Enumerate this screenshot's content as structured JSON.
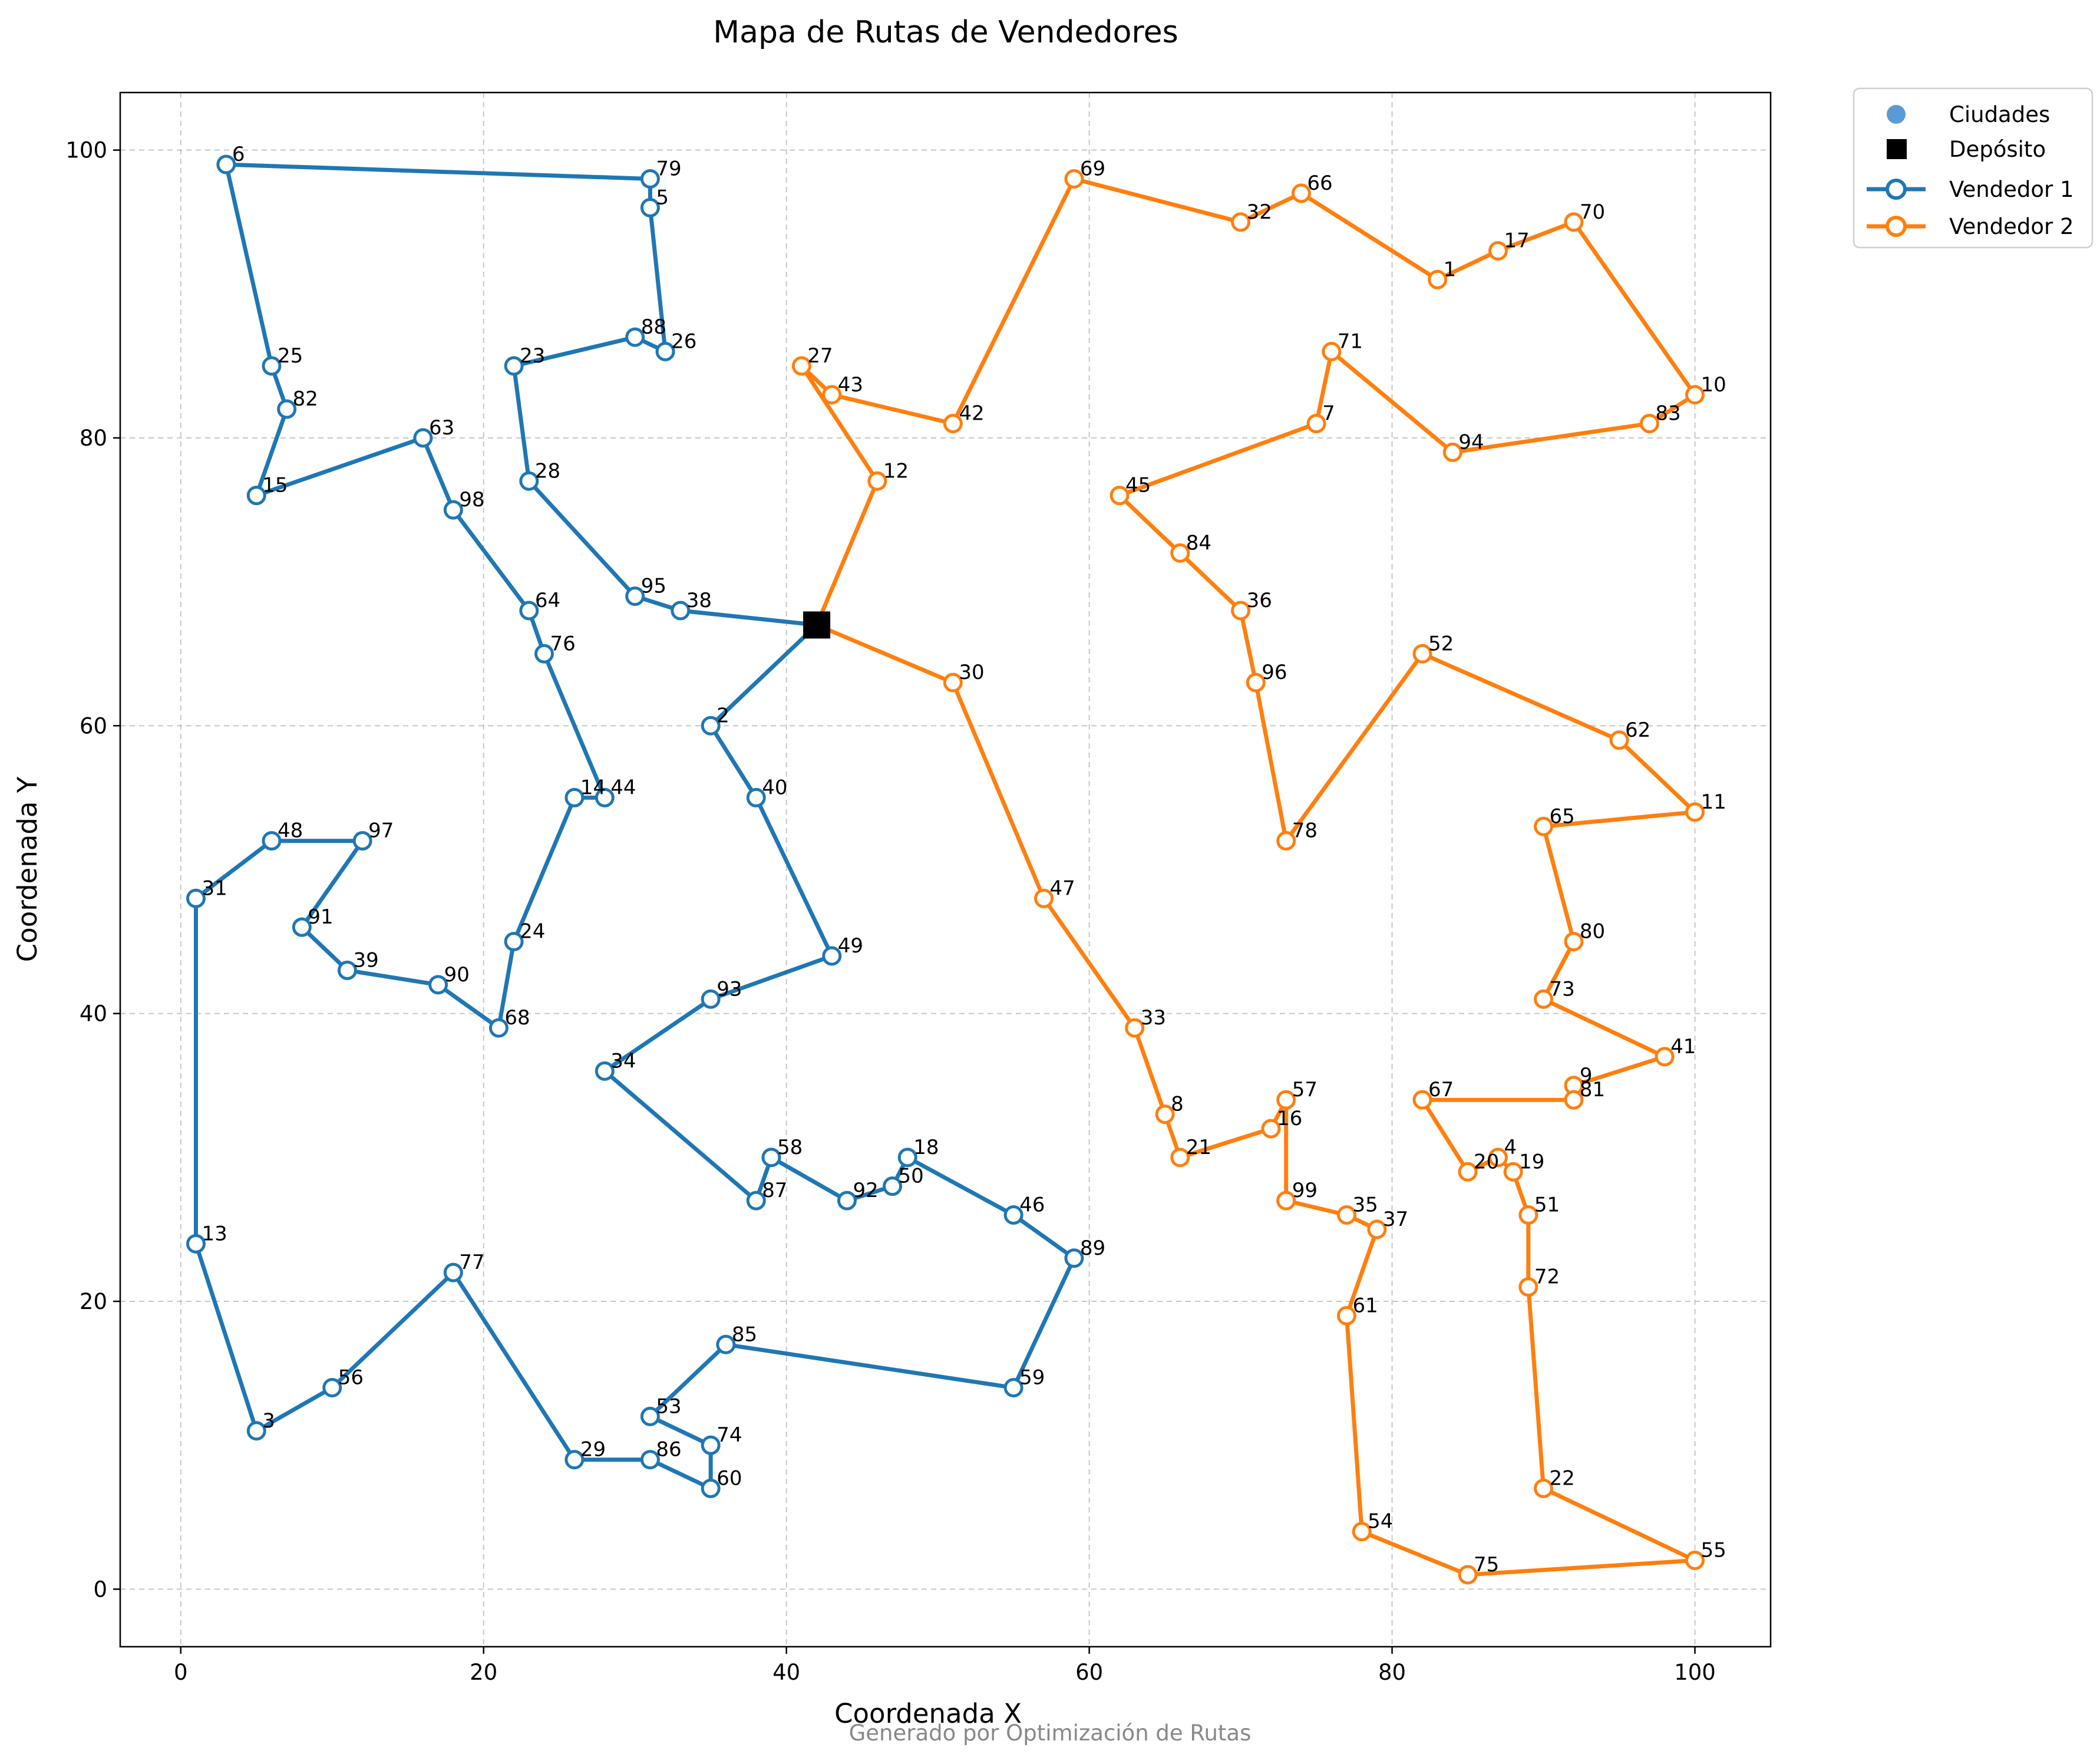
{
  "chart_data": {
    "type": "scatter",
    "title": "Mapa de Rutas de Vendedores",
    "xlabel": "Coordenada X",
    "ylabel": "Coordenada Y",
    "footer": "Generado por Optimización de Rutas",
    "xlim": [
      -4,
      105
    ],
    "ylim": [
      -4,
      104
    ],
    "xticks": [
      0,
      20,
      40,
      60,
      80,
      100
    ],
    "yticks": [
      0,
      20,
      40,
      60,
      80,
      100
    ],
    "grid": true,
    "legend_position": "outside-top-right",
    "legend": {
      "cities": "Ciudades",
      "depot": "Depósito",
      "seller1": "Vendedor 1",
      "seller2": "Vendedor 2"
    },
    "colors": {
      "seller1": "#1f77b4",
      "seller2": "#ff7f0e",
      "cities": "#5b9bd5",
      "depot": "#000000",
      "grid": "#b0b0b0"
    },
    "depot": {
      "x": 42,
      "y": 67
    },
    "cities": [
      {
        "id": "1",
        "x": 83,
        "y": 91
      },
      {
        "id": "2",
        "x": 35,
        "y": 60
      },
      {
        "id": "3",
        "x": 5,
        "y": 11
      },
      {
        "id": "4",
        "x": 87,
        "y": 30
      },
      {
        "id": "5",
        "x": 31,
        "y": 96
      },
      {
        "id": "6",
        "x": 3,
        "y": 99
      },
      {
        "id": "7",
        "x": 75,
        "y": 81
      },
      {
        "id": "8",
        "x": 65,
        "y": 33
      },
      {
        "id": "9",
        "x": 92,
        "y": 35
      },
      {
        "id": "10",
        "x": 100,
        "y": 83
      },
      {
        "id": "11",
        "x": 100,
        "y": 54
      },
      {
        "id": "12",
        "x": 46,
        "y": 77
      },
      {
        "id": "13",
        "x": 1,
        "y": 24
      },
      {
        "id": "14",
        "x": 26,
        "y": 55
      },
      {
        "id": "15",
        "x": 5,
        "y": 76
      },
      {
        "id": "16",
        "x": 72,
        "y": 32
      },
      {
        "id": "17",
        "x": 87,
        "y": 93
      },
      {
        "id": "18",
        "x": 48,
        "y": 30
      },
      {
        "id": "19",
        "x": 88,
        "y": 29
      },
      {
        "id": "20",
        "x": 85,
        "y": 29
      },
      {
        "id": "21",
        "x": 66,
        "y": 30
      },
      {
        "id": "22",
        "x": 90,
        "y": 7
      },
      {
        "id": "23",
        "x": 22,
        "y": 85
      },
      {
        "id": "24",
        "x": 22,
        "y": 45
      },
      {
        "id": "25",
        "x": 6,
        "y": 85
      },
      {
        "id": "26",
        "x": 32,
        "y": 86
      },
      {
        "id": "27",
        "x": 41,
        "y": 85
      },
      {
        "id": "28",
        "x": 23,
        "y": 77
      },
      {
        "id": "29",
        "x": 26,
        "y": 9
      },
      {
        "id": "30",
        "x": 51,
        "y": 63
      },
      {
        "id": "31",
        "x": 1,
        "y": 48
      },
      {
        "id": "32",
        "x": 70,
        "y": 95
      },
      {
        "id": "33",
        "x": 63,
        "y": 39
      },
      {
        "id": "34",
        "x": 28,
        "y": 36
      },
      {
        "id": "35",
        "x": 77,
        "y": 26
      },
      {
        "id": "36",
        "x": 70,
        "y": 68
      },
      {
        "id": "37",
        "x": 79,
        "y": 25
      },
      {
        "id": "38",
        "x": 33,
        "y": 68
      },
      {
        "id": "39",
        "x": 11,
        "y": 43
      },
      {
        "id": "40",
        "x": 38,
        "y": 55
      },
      {
        "id": "41",
        "x": 98,
        "y": 37
      },
      {
        "id": "42",
        "x": 51,
        "y": 81
      },
      {
        "id": "43",
        "x": 43,
        "y": 83
      },
      {
        "id": "44",
        "x": 28,
        "y": 55
      },
      {
        "id": "45",
        "x": 62,
        "y": 76
      },
      {
        "id": "46",
        "x": 55,
        "y": 26
      },
      {
        "id": "47",
        "x": 57,
        "y": 48
      },
      {
        "id": "48",
        "x": 6,
        "y": 52
      },
      {
        "id": "49",
        "x": 43,
        "y": 44
      },
      {
        "id": "50",
        "x": 47,
        "y": 28
      },
      {
        "id": "51",
        "x": 89,
        "y": 26
      },
      {
        "id": "52",
        "x": 82,
        "y": 65
      },
      {
        "id": "53",
        "x": 31,
        "y": 12
      },
      {
        "id": "54",
        "x": 78,
        "y": 4
      },
      {
        "id": "55",
        "x": 100,
        "y": 2
      },
      {
        "id": "56",
        "x": 10,
        "y": 14
      },
      {
        "id": "57",
        "x": 73,
        "y": 34
      },
      {
        "id": "58",
        "x": 39,
        "y": 30
      },
      {
        "id": "59",
        "x": 55,
        "y": 14
      },
      {
        "id": "60",
        "x": 35,
        "y": 7
      },
      {
        "id": "61",
        "x": 77,
        "y": 19
      },
      {
        "id": "62",
        "x": 95,
        "y": 59
      },
      {
        "id": "63",
        "x": 16,
        "y": 80
      },
      {
        "id": "64",
        "x": 23,
        "y": 68
      },
      {
        "id": "65",
        "x": 90,
        "y": 53
      },
      {
        "id": "66",
        "x": 74,
        "y": 97
      },
      {
        "id": "67",
        "x": 82,
        "y": 34
      },
      {
        "id": "68",
        "x": 21,
        "y": 39
      },
      {
        "id": "69",
        "x": 59,
        "y": 98
      },
      {
        "id": "70",
        "x": 92,
        "y": 95
      },
      {
        "id": "71",
        "x": 76,
        "y": 86
      },
      {
        "id": "72",
        "x": 89,
        "y": 21
      },
      {
        "id": "73",
        "x": 90,
        "y": 41
      },
      {
        "id": "74",
        "x": 35,
        "y": 10
      },
      {
        "id": "75",
        "x": 85,
        "y": 1
      },
      {
        "id": "76",
        "x": 24,
        "y": 65
      },
      {
        "id": "77",
        "x": 18,
        "y": 22
      },
      {
        "id": "78",
        "x": 73,
        "y": 52
      },
      {
        "id": "79",
        "x": 31,
        "y": 98
      },
      {
        "id": "80",
        "x": 92,
        "y": 45
      },
      {
        "id": "81",
        "x": 92,
        "y": 34
      },
      {
        "id": "82",
        "x": 7,
        "y": 82
      },
      {
        "id": "83",
        "x": 97,
        "y": 81
      },
      {
        "id": "84",
        "x": 66,
        "y": 72
      },
      {
        "id": "85",
        "x": 36,
        "y": 17
      },
      {
        "id": "86",
        "x": 31,
        "y": 9
      },
      {
        "id": "87",
        "x": 38,
        "y": 27
      },
      {
        "id": "88",
        "x": 30,
        "y": 87
      },
      {
        "id": "89",
        "x": 59,
        "y": 23
      },
      {
        "id": "90",
        "x": 17,
        "y": 42
      },
      {
        "id": "91",
        "x": 8,
        "y": 46
      },
      {
        "id": "92",
        "x": 44,
        "y": 27
      },
      {
        "id": "93",
        "x": 35,
        "y": 41
      },
      {
        "id": "94",
        "x": 84,
        "y": 79
      },
      {
        "id": "95",
        "x": 30,
        "y": 69
      },
      {
        "id": "96",
        "x": 71,
        "y": 63
      },
      {
        "id": "97",
        "x": 12,
        "y": 52
      },
      {
        "id": "98",
        "x": 18,
        "y": 75
      }
    ],
    "series": [
      {
        "name": "Vendedor 1",
        "color": "#1f77b4",
        "route": [
          "depot",
          "38",
          "95",
          "28",
          "23",
          "88",
          "26",
          "5",
          "79",
          "6",
          "25",
          "82",
          "15",
          "63",
          "98",
          "64",
          "76",
          "44",
          "14",
          "24",
          "68",
          "90",
          "39",
          "91",
          "97",
          "48",
          "31",
          "13",
          "3",
          "56",
          "77",
          "29",
          "86",
          "60",
          "74",
          "53",
          "85",
          "59",
          "89",
          "46",
          "18",
          "50",
          "92",
          "58",
          "87",
          "34",
          "93",
          "49",
          "40",
          "2",
          "depot"
        ]
      },
      {
        "name": "Vendedor 2",
        "color": "#ff7f0e",
        "route": [
          "depot",
          "12",
          "27",
          "43",
          "42",
          "69",
          "32",
          "66",
          "1",
          "17",
          "70",
          "10",
          "83",
          "94",
          "71",
          "7",
          "45",
          "84",
          "36",
          "96",
          "78",
          "52",
          "62",
          "11",
          "65",
          "80",
          "73",
          "41",
          "9",
          "81",
          "67",
          "20",
          "4",
          "19",
          "51",
          "72",
          "22",
          "55",
          "75",
          "54",
          "61",
          "37",
          "35",
          "99",
          "57",
          "16",
          "21",
          "8",
          "33",
          "47",
          "30",
          "depot"
        ]
      }
    ],
    "extra_points": [
      {
        "id": "99",
        "x": 73,
        "y": 27
      }
    ]
  }
}
